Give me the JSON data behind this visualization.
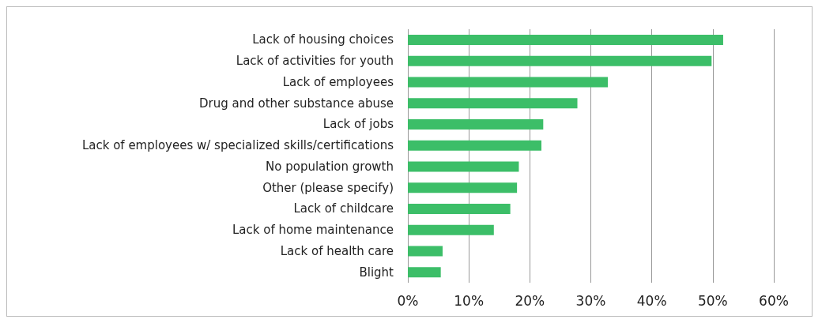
{
  "chart_data": {
    "type": "bar",
    "orientation": "horizontal",
    "categories": [
      "Lack of housing choices",
      "Lack of activities for youth",
      "Lack of employees",
      "Drug and other substance abuse",
      "Lack of jobs",
      "Lack of employees w/ specialized skills/certifications",
      "No population growth",
      "Other (please specify)",
      "Lack of childcare",
      "Lack of home maintenance",
      "Lack of health care",
      "Blight"
    ],
    "values": [
      51.7,
      49.8,
      32.8,
      27.8,
      22.2,
      21.9,
      18.2,
      17.9,
      16.8,
      14.1,
      5.7,
      5.4
    ],
    "color": "#3cbe68",
    "xlim": [
      0,
      60
    ],
    "xticks": [
      {
        "value": 0,
        "label": "0%"
      },
      {
        "value": 10,
        "label": "10%"
      },
      {
        "value": 20,
        "label": "20%"
      },
      {
        "value": 30,
        "label": "30%"
      },
      {
        "value": 40,
        "label": "40%"
      },
      {
        "value": 50,
        "label": "50%"
      },
      {
        "value": 60,
        "label": "60%"
      }
    ],
    "grid": "x"
  }
}
